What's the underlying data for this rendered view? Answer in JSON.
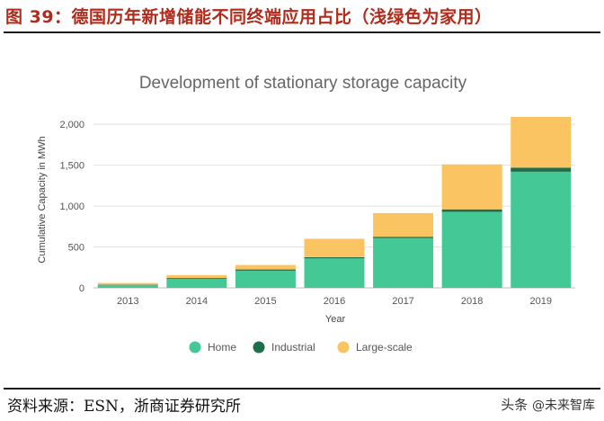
{
  "figure_title": "图 39：德国历年新增储能不同终端应用占比（浅绿色为家用）",
  "source": "资料来源：ESN，浙商证券研究所",
  "watermark": {
    "brand": "头条",
    "handle": "@未来智库"
  },
  "colors": {
    "home": "#44c896",
    "industrial": "#1f6e4b",
    "large_scale": "#fbc462",
    "grid": "#e2e2e2",
    "title_red": "#b22a1a"
  },
  "chart_data": {
    "type": "bar",
    "stacked": true,
    "title": "Development of stationary storage capacity",
    "xlabel": "Year",
    "ylabel": "Cumulative Capacity in MWh",
    "ylim": [
      0,
      2200
    ],
    "yticks": [
      0,
      500,
      1000,
      1500,
      2000
    ],
    "ytick_labels": [
      "0",
      "500",
      "1,000",
      "1,500",
      "2,000"
    ],
    "grid": true,
    "legend_position": "bottom",
    "categories": [
      "2013",
      "2014",
      "2015",
      "2016",
      "2017",
      "2018",
      "2019"
    ],
    "series": [
      {
        "name": "Home",
        "color": "#44c896",
        "values": [
          35,
          110,
          210,
          360,
          610,
          930,
          1420
        ]
      },
      {
        "name": "Industrial",
        "color": "#1f6e4b",
        "values": [
          5,
          10,
          15,
          15,
          15,
          30,
          50
        ]
      },
      {
        "name": "Large-scale",
        "color": "#fbc462",
        "values": [
          20,
          35,
          55,
          225,
          290,
          550,
          620
        ]
      }
    ]
  }
}
